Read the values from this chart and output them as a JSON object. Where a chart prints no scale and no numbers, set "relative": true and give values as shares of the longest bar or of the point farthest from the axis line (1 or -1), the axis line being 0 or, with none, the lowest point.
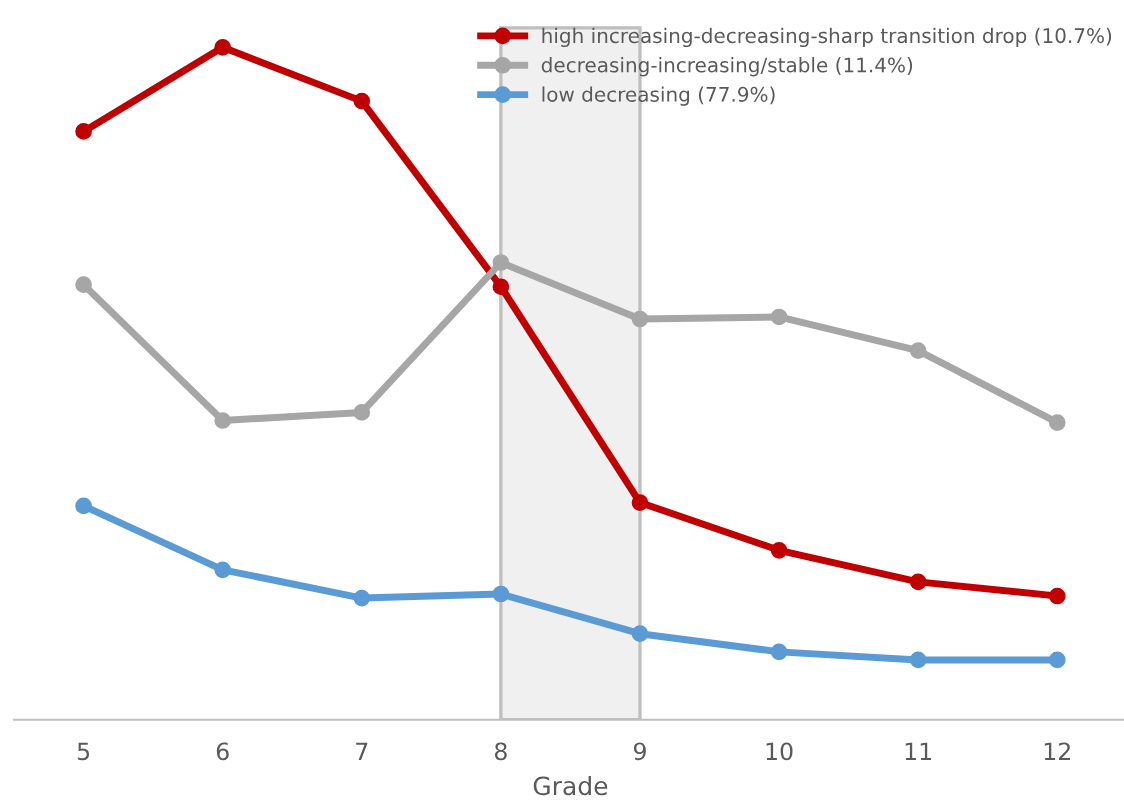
{
  "chart_data": {
    "type": "line",
    "xlabel": "Grade",
    "relative": true,
    "categories": [
      "5",
      "6",
      "7",
      "8",
      "9",
      "10",
      "11",
      "12"
    ],
    "series": [
      {
        "name": "high increasing-decreasing-sharp transition drop (10.7%)",
        "color": "#c00000",
        "values": [
          0.875,
          1,
          0.92,
          0.644,
          0.323,
          0.252,
          0.205,
          0.184
        ]
      },
      {
        "name": "decreasing-increasing/stable (11.4%)",
        "color": "#a6a6a6",
        "values": [
          0.647,
          0.445,
          0.457,
          0.68,
          0.596,
          0.599,
          0.549,
          0.442
        ]
      },
      {
        "name": "low decreasing (77.9%)",
        "color": "#5b9bd5",
        "values": [
          0.318,
          0.223,
          0.181,
          0.187,
          0.128,
          0.101,
          0.089,
          0.089
        ]
      }
    ],
    "bands": [
      {
        "axis": "x",
        "from": "8",
        "to": "9",
        "color": "#f0f0f0"
      }
    ],
    "marker": "circle",
    "line_style": "solid",
    "grid": false,
    "legend": "top right"
  }
}
